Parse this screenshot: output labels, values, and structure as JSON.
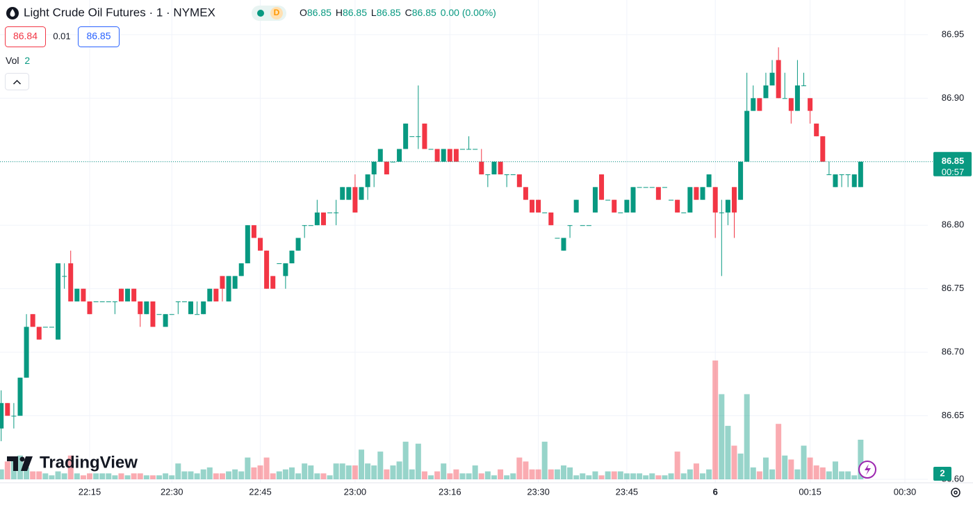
{
  "header": {
    "symbol": "Light Crude Oil Futures · 1 · NYMEX",
    "badge": "D",
    "ohlc": [
      {
        "label": "O",
        "value": 86.85
      },
      {
        "label": "H",
        "value": 86.85
      },
      {
        "label": "L",
        "value": 86.85
      },
      {
        "label": "C",
        "value": 86.85
      }
    ],
    "change": "0.00 (0.00%)"
  },
  "quote": {
    "sell": 86.84,
    "spread": 0.01,
    "buy": 86.85
  },
  "volume_legend": {
    "label": "Vol"
  },
  "branding": "TradingView",
  "chart_data": {
    "type": "candlestick",
    "up_color": "#089981",
    "down_color": "#f23645",
    "categories": [
      null,
      null,
      null,
      null,
      null,
      null,
      null,
      null,
      null,
      null,
      null,
      null,
      null,
      null,
      "22:15",
      null,
      null,
      null,
      null,
      null,
      null,
      null,
      null,
      null,
      null,
      null,
      null,
      "22:30",
      null,
      null,
      null,
      null,
      null,
      null,
      null,
      null,
      null,
      null,
      null,
      null,
      null,
      "22:45",
      null,
      null,
      null,
      null,
      null,
      null,
      null,
      null,
      null,
      null,
      null,
      null,
      null,
      null,
      "23:00",
      null,
      null,
      null,
      null,
      null,
      null,
      null,
      null,
      null,
      null,
      null,
      null,
      null,
      null,
      "23:16",
      null,
      null,
      null,
      null,
      null,
      null,
      null,
      null,
      null,
      null,
      null,
      null,
      null,
      "23:30",
      null,
      null,
      null,
      null,
      null,
      null,
      null,
      null,
      null,
      null,
      null,
      null,
      null,
      "23:45",
      null,
      null,
      null,
      null,
      null,
      null,
      null,
      null,
      null,
      null,
      null,
      null,
      null,
      "6",
      null,
      null,
      null,
      null,
      null,
      null,
      null,
      null,
      null,
      null,
      null,
      null,
      null,
      null,
      "00:15",
      null,
      null,
      null,
      null,
      null,
      null,
      null,
      null,
      null,
      null,
      null,
      null,
      null,
      null,
      "00:30"
    ],
    "open": [
      86.64,
      86.66,
      86.65,
      86.65,
      86.68,
      86.73,
      86.72,
      86.72,
      86.72,
      86.71,
      86.76,
      86.77,
      86.74,
      86.75,
      86.74,
      86.74,
      86.74,
      86.74,
      86.74,
      86.75,
      86.74,
      86.75,
      86.74,
      86.73,
      86.74,
      86.73,
      86.72,
      86.73,
      86.74,
      86.74,
      86.73,
      86.73,
      86.73,
      86.74,
      86.75,
      86.76,
      86.74,
      86.75,
      86.76,
      86.77,
      86.8,
      86.79,
      86.78,
      86.76,
      86.77,
      86.76,
      86.77,
      86.78,
      86.8,
      86.8,
      86.8,
      86.81,
      86.81,
      86.81,
      86.82,
      86.82,
      86.83,
      86.82,
      86.83,
      86.84,
      86.85,
      86.85,
      86.85,
      86.85,
      86.86,
      86.87,
      86.87,
      86.88,
      86.86,
      86.86,
      86.85,
      86.86,
      86.86,
      86.86,
      86.86,
      86.86,
      86.85,
      86.84,
      86.84,
      86.85,
      86.84,
      86.84,
      86.84,
      86.83,
      86.82,
      86.82,
      86.81,
      86.81,
      86.79,
      86.78,
      86.8,
      86.81,
      86.8,
      86.8,
      86.81,
      86.84,
      86.82,
      86.82,
      86.81,
      86.81,
      86.81,
      86.83,
      86.83,
      86.83,
      86.83,
      86.83,
      86.82,
      86.82,
      86.81,
      86.81,
      86.83,
      86.82,
      86.83,
      86.83,
      86.81,
      86.81,
      86.83,
      86.82,
      86.85,
      86.89,
      86.9,
      86.9,
      86.91,
      86.93,
      86.9,
      86.9,
      86.89,
      86.91,
      86.9,
      86.88,
      86.87,
      86.84,
      86.83,
      86.84,
      86.84,
      86.83,
      86.83,
      null,
      null,
      null,
      null,
      null,
      null,
      null
    ],
    "high": [
      86.67,
      86.66,
      86.66,
      86.68,
      86.73,
      86.73,
      86.72,
      86.72,
      86.72,
      86.77,
      86.77,
      86.78,
      86.75,
      86.75,
      86.74,
      86.74,
      86.74,
      86.74,
      86.74,
      86.75,
      86.75,
      86.75,
      86.74,
      86.74,
      86.74,
      86.73,
      86.73,
      86.73,
      86.74,
      86.74,
      86.74,
      86.74,
      86.74,
      86.75,
      86.75,
      86.76,
      86.76,
      86.76,
      86.77,
      86.8,
      86.8,
      86.79,
      86.78,
      86.76,
      86.77,
      86.77,
      86.78,
      86.79,
      86.8,
      86.8,
      86.82,
      86.81,
      86.81,
      86.82,
      86.83,
      86.83,
      86.84,
      86.83,
      86.84,
      86.85,
      86.86,
      86.85,
      86.85,
      86.86,
      86.88,
      86.87,
      86.91,
      86.88,
      86.86,
      86.86,
      86.86,
      86.86,
      86.86,
      86.86,
      86.87,
      86.86,
      86.86,
      86.84,
      86.85,
      86.85,
      86.84,
      86.84,
      86.84,
      86.83,
      86.82,
      86.82,
      86.81,
      86.81,
      86.79,
      86.79,
      86.8,
      86.82,
      86.8,
      86.8,
      86.83,
      86.84,
      86.82,
      86.82,
      86.81,
      86.82,
      86.83,
      86.83,
      86.83,
      86.83,
      86.83,
      86.83,
      86.82,
      86.82,
      86.81,
      86.83,
      86.83,
      86.83,
      86.84,
      86.83,
      86.82,
      86.82,
      86.83,
      86.85,
      86.92,
      86.91,
      86.9,
      86.92,
      86.93,
      86.94,
      86.92,
      86.9,
      86.93,
      86.92,
      86.9,
      86.88,
      86.87,
      86.85,
      86.84,
      86.84,
      86.84,
      86.84,
      86.85,
      null,
      null,
      null,
      null,
      null,
      null,
      null
    ],
    "low": [
      86.63,
      86.65,
      86.64,
      86.65,
      86.68,
      86.72,
      86.71,
      86.72,
      86.72,
      86.71,
      86.75,
      86.74,
      86.74,
      86.74,
      86.73,
      86.74,
      86.74,
      86.74,
      86.73,
      86.74,
      86.74,
      86.74,
      86.72,
      86.73,
      86.72,
      86.73,
      86.72,
      86.73,
      86.73,
      86.74,
      86.73,
      86.73,
      86.73,
      86.74,
      86.74,
      86.74,
      86.74,
      86.75,
      86.76,
      86.77,
      86.79,
      86.78,
      86.75,
      86.75,
      86.77,
      86.75,
      86.77,
      86.78,
      86.79,
      86.8,
      86.8,
      86.8,
      86.81,
      86.8,
      86.82,
      86.82,
      86.81,
      86.82,
      86.82,
      86.83,
      86.85,
      86.84,
      86.85,
      86.85,
      86.86,
      86.87,
      86.86,
      86.86,
      86.86,
      86.85,
      86.85,
      86.85,
      86.85,
      86.86,
      86.86,
      86.86,
      86.84,
      86.83,
      86.84,
      86.84,
      86.83,
      86.84,
      86.83,
      86.82,
      86.81,
      86.81,
      86.81,
      86.8,
      86.79,
      86.78,
      86.79,
      86.81,
      86.8,
      86.8,
      86.81,
      86.82,
      86.82,
      86.81,
      86.81,
      86.81,
      86.81,
      86.83,
      86.83,
      86.83,
      86.82,
      86.83,
      86.82,
      86.81,
      86.81,
      86.81,
      86.82,
      86.82,
      86.83,
      86.79,
      86.76,
      86.8,
      86.79,
      86.82,
      86.85,
      86.89,
      86.89,
      86.9,
      86.91,
      86.9,
      86.9,
      86.88,
      86.89,
      86.91,
      86.88,
      86.87,
      86.85,
      86.84,
      86.83,
      86.83,
      86.83,
      86.83,
      86.83,
      null,
      null,
      null,
      null,
      null,
      null,
      null
    ],
    "close": [
      86.66,
      86.65,
      86.65,
      86.68,
      86.72,
      86.72,
      86.71,
      86.72,
      86.72,
      86.77,
      86.76,
      86.74,
      86.75,
      86.74,
      86.73,
      86.74,
      86.74,
      86.74,
      86.74,
      86.74,
      86.75,
      86.74,
      86.73,
      86.74,
      86.72,
      86.73,
      86.73,
      86.73,
      86.74,
      86.74,
      86.74,
      86.73,
      86.74,
      86.75,
      86.74,
      86.75,
      86.76,
      86.76,
      86.77,
      86.8,
      86.79,
      86.78,
      86.75,
      86.75,
      86.77,
      86.77,
      86.78,
      86.79,
      86.8,
      86.8,
      86.81,
      86.8,
      86.81,
      86.81,
      86.83,
      86.83,
      86.81,
      86.83,
      86.84,
      86.85,
      86.86,
      86.84,
      86.85,
      86.86,
      86.88,
      86.87,
      86.87,
      86.86,
      86.86,
      86.85,
      86.86,
      86.85,
      86.85,
      86.86,
      86.86,
      86.86,
      86.84,
      86.84,
      86.85,
      86.84,
      86.84,
      86.84,
      86.83,
      86.82,
      86.81,
      86.81,
      86.81,
      86.8,
      86.79,
      86.79,
      86.8,
      86.82,
      86.8,
      86.8,
      86.83,
      86.82,
      86.82,
      86.81,
      86.81,
      86.82,
      86.83,
      86.83,
      86.83,
      86.83,
      86.82,
      86.83,
      86.82,
      86.81,
      86.81,
      86.83,
      86.82,
      86.83,
      86.84,
      86.81,
      86.81,
      86.82,
      86.81,
      86.85,
      86.89,
      86.9,
      86.89,
      86.91,
      86.92,
      86.9,
      86.9,
      86.89,
      86.91,
      86.91,
      86.89,
      86.87,
      86.85,
      86.84,
      86.84,
      86.84,
      86.84,
      86.84,
      86.85,
      null,
      null,
      null,
      null,
      null,
      null,
      null
    ],
    "volume": [
      0.5,
      0.9,
      1.0,
      1.2,
      0.6,
      0.4,
      0.4,
      0.3,
      0.2,
      0.4,
      0.3,
      1.2,
      0.3,
      0.2,
      0.3,
      0.3,
      0.3,
      0.3,
      0.2,
      0.3,
      0.2,
      0.3,
      0.3,
      0.2,
      0.2,
      0.2,
      0.3,
      0.2,
      0.8,
      0.4,
      0.4,
      0.3,
      0.5,
      0.6,
      0.3,
      0.3,
      0.4,
      0.5,
      0.4,
      1.1,
      0.6,
      0.7,
      1.1,
      0.3,
      0.4,
      0.5,
      0.6,
      0.3,
      0.8,
      0.7,
      0.3,
      0.3,
      0.2,
      0.8,
      0.8,
      0.7,
      0.7,
      1.5,
      0.8,
      0.7,
      1.4,
      0.5,
      0.7,
      0.9,
      1.9,
      0.5,
      1.8,
      0.4,
      0.2,
      0.4,
      0.8,
      0.3,
      0.5,
      0.3,
      0.3,
      0.7,
      0.3,
      0.4,
      0.2,
      0.5,
      0.2,
      0.3,
      1.1,
      0.9,
      0.5,
      0.5,
      1.9,
      0.5,
      0.5,
      0.7,
      0.6,
      0.2,
      0.3,
      0.2,
      0.4,
      0.2,
      0.4,
      0.4,
      0.4,
      0.3,
      0.3,
      0.3,
      0.2,
      0.3,
      0.2,
      0.2,
      0.3,
      1.4,
      0.3,
      0.5,
      0.8,
      0.3,
      0.5,
      6.0,
      4.3,
      2.7,
      1.7,
      1.3,
      4.3,
      0.6,
      0.4,
      1.1,
      0.5,
      2.8,
      1.2,
      1.0,
      0.5,
      1.7,
      1.1,
      0.7,
      0.6,
      0.4,
      0.9,
      0.4,
      0.4,
      0.2,
      2,
      null,
      null,
      null,
      null,
      null,
      null,
      null
    ],
    "ylim": [
      86.6,
      86.98
    ],
    "yticks": [
      {
        "value": 86.6,
        "label": "86.60"
      },
      86.65,
      {
        "value": 86.7,
        "label": "86.70"
      },
      86.75,
      {
        "value": 86.8,
        "label": "86.80"
      },
      86.85,
      {
        "value": 86.9,
        "label": "86.90"
      },
      86.95
    ],
    "grid": true,
    "countdown": "00:57"
  }
}
